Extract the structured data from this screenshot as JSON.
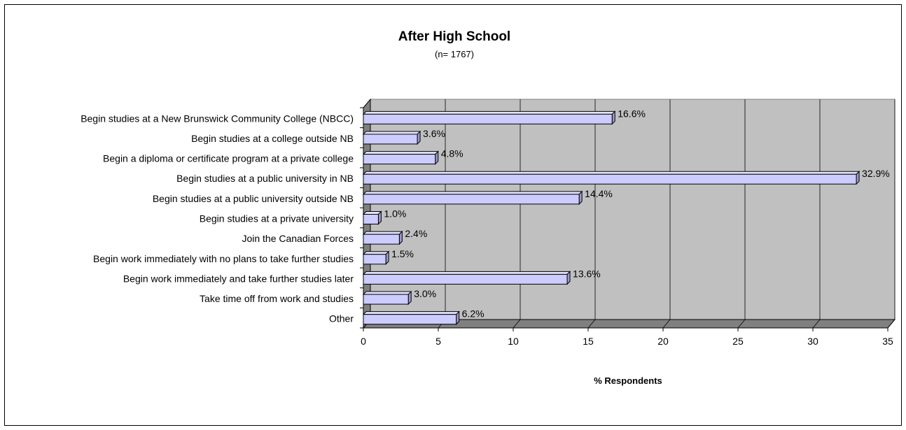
{
  "chart_data": {
    "type": "bar",
    "orientation": "horizontal",
    "title": "After High School",
    "subtitle": "(n= 1767)",
    "xlabel": "% Respondents",
    "ylabel": "",
    "xlim": [
      0,
      35
    ],
    "xticks": [
      "0",
      "5",
      "10",
      "15",
      "20",
      "25",
      "30",
      "35"
    ],
    "grid": true,
    "legend": "none",
    "categories": [
      "Begin studies at a New Brunswick Community College (NBCC)",
      "Begin studies at a college outside NB",
      "Begin a diploma or certificate program at a private college",
      "Begin studies at a public university in NB",
      "Begin studies at a public university outside NB",
      "Begin studies at a private university",
      "Join the Canadian Forces",
      "Begin work immediately with no plans to take further studies",
      "Begin work immediately and take further studies later",
      "Take time off from work and studies",
      "Other"
    ],
    "values": [
      16.6,
      3.6,
      4.8,
      32.9,
      14.4,
      1.0,
      2.4,
      1.5,
      13.6,
      3.0,
      6.2
    ],
    "data_labels": [
      "16.6%",
      "3.6%",
      "4.8%",
      "32.9%",
      "14.4%",
      "1.0%",
      "2.4%",
      "1.5%",
      "13.6%",
      "3.0%",
      "6.2%"
    ],
    "colors": {
      "bar_fill": "#ccccff",
      "bar_top": "#e6e6ff",
      "bar_side": "#9999cc",
      "plot_back": "#c0c0c0",
      "plot_floor": "#808080",
      "grid": "#000000"
    }
  }
}
